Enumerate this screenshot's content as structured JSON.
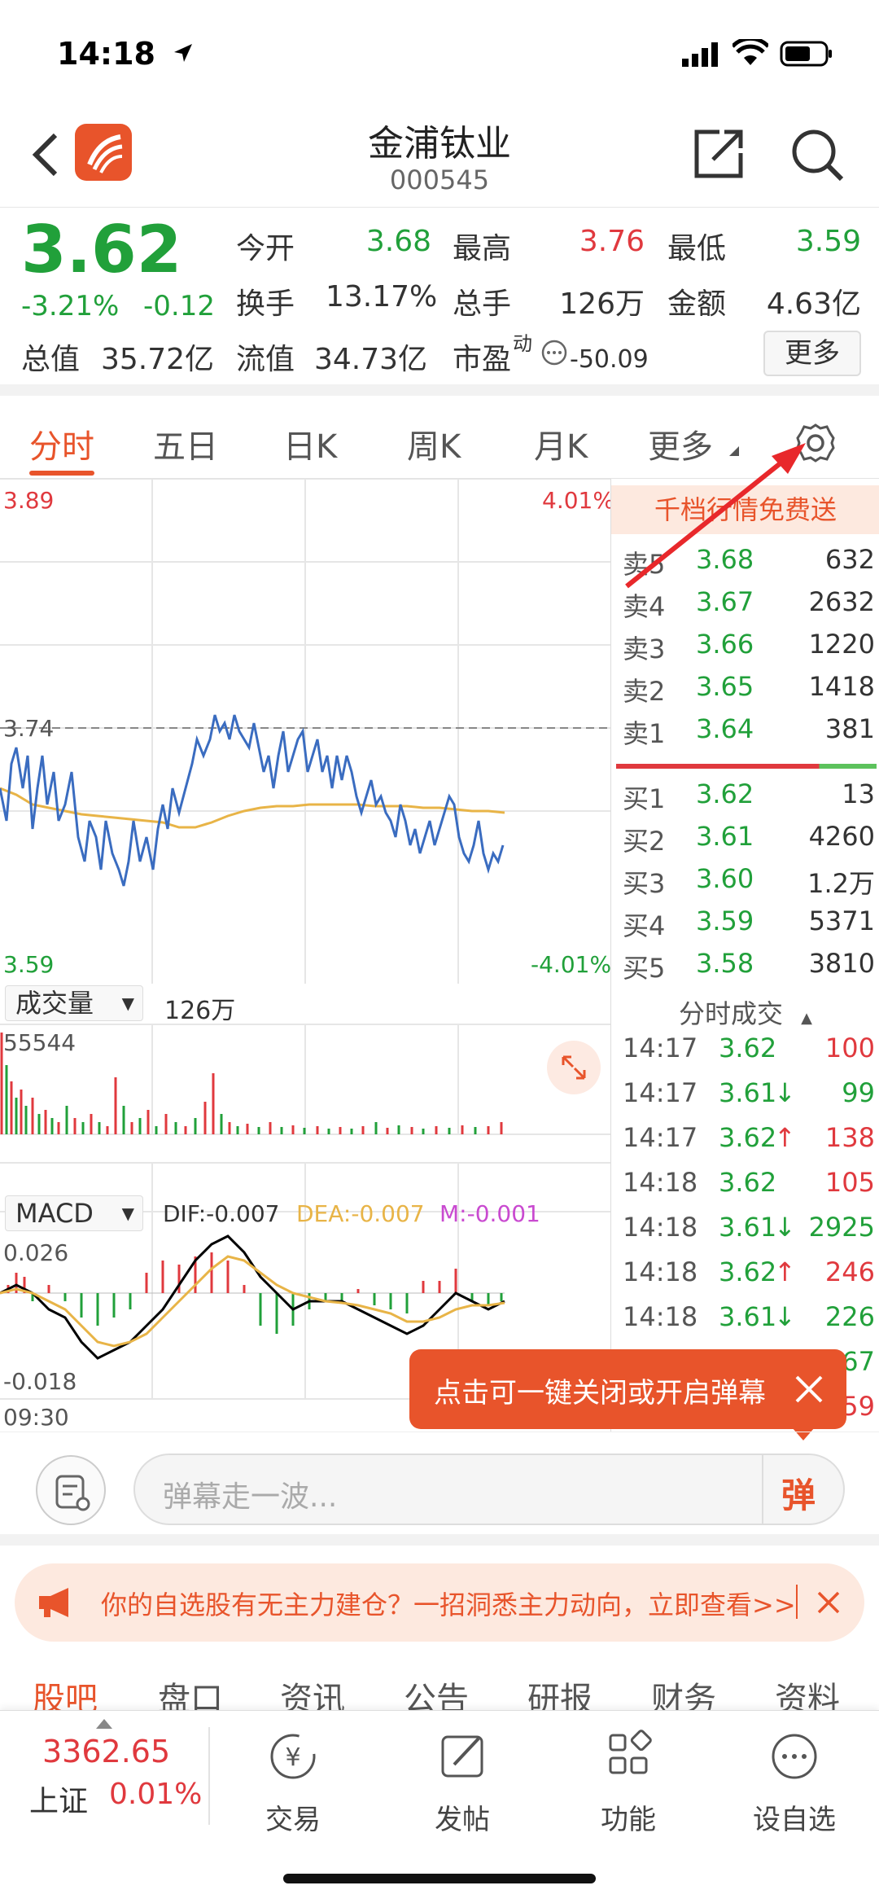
{
  "status_bar": {
    "time": "14:18"
  },
  "header": {
    "title": "金浦钛业",
    "code": "000545"
  },
  "quote": {
    "price": "3.62",
    "change_pct": "-3.21%",
    "change_amt": "-0.12",
    "fields": {
      "open_label": "今开",
      "open": "3.68",
      "high_label": "最高",
      "high": "3.76",
      "low_label": "最低",
      "low": "3.59",
      "turnover_label": "换手",
      "turnover": "13.17%",
      "volume_label": "总手",
      "volume": "126万",
      "amount_label": "金额",
      "amount": "4.63亿",
      "mktcap_label": "总值",
      "mktcap": "35.72亿",
      "float_label": "流值",
      "float_cap": "34.73亿",
      "pe_label": "市盈",
      "pe_sup": "动",
      "pe": "-50.09"
    },
    "more_button": "更多"
  },
  "chart_tabs": [
    "分时",
    "五日",
    "日K",
    "周K",
    "月K",
    "更多"
  ],
  "chart": {
    "price_high": "3.89",
    "price_low": "3.59",
    "pct_high": "4.01%",
    "pct_low": "-4.01%",
    "ref_line": "3.74",
    "volume_selector": "成交量",
    "volume_total": "126万",
    "volume_max": "55544",
    "macd_selector": "MACD",
    "dif": "DIF:-0.007",
    "dea": "DEA:-0.007",
    "m": "M:-0.001",
    "macd_high": "0.026",
    "macd_low": "-0.018",
    "time_start": "09:30"
  },
  "order_book": {
    "banner": "千档行情免费送",
    "asks": [
      {
        "label": "卖5",
        "price": "3.68",
        "vol": "632"
      },
      {
        "label": "卖4",
        "price": "3.67",
        "vol": "2632"
      },
      {
        "label": "卖3",
        "price": "3.66",
        "vol": "1220"
      },
      {
        "label": "卖2",
        "price": "3.65",
        "vol": "1418"
      },
      {
        "label": "卖1",
        "price": "3.64",
        "vol": "381"
      }
    ],
    "bids": [
      {
        "label": "买1",
        "price": "3.62",
        "vol": "13"
      },
      {
        "label": "买2",
        "price": "3.61",
        "vol": "4260"
      },
      {
        "label": "买3",
        "price": "3.60",
        "vol": "1.2万"
      },
      {
        "label": "买4",
        "price": "3.59",
        "vol": "5371"
      },
      {
        "label": "买5",
        "price": "3.58",
        "vol": "3810"
      }
    ],
    "trades_title": "分时成交",
    "trades": [
      {
        "time": "14:17",
        "price": "3.62",
        "arrow": "",
        "vol": "100",
        "color": "#e0393e"
      },
      {
        "time": "14:17",
        "price": "3.61",
        "arrow": "↓",
        "vol": "99",
        "color": "#21a03a"
      },
      {
        "time": "14:17",
        "price": "3.62",
        "arrow": "↑",
        "vol": "138",
        "color": "#e0393e"
      },
      {
        "time": "14:18",
        "price": "3.62",
        "arrow": "",
        "vol": "105",
        "color": "#e0393e"
      },
      {
        "time": "14:18",
        "price": "3.61",
        "arrow": "↓",
        "vol": "2925",
        "color": "#21a03a"
      },
      {
        "time": "14:18",
        "price": "3.62",
        "arrow": "↑",
        "vol": "246",
        "color": "#e0393e"
      },
      {
        "time": "14:18",
        "price": "3.61",
        "arrow": "↓",
        "vol": "226",
        "color": "#21a03a"
      }
    ],
    "trades_partial": [
      "67",
      "59"
    ]
  },
  "tooltip": "点击可一键关闭或开启弹幕",
  "danmu": {
    "placeholder": "弹幕走一波...",
    "button": "弹"
  },
  "promo": "你的自选股有无主力建仓？一招洞悉主力动向，立即查看>>",
  "sub_tabs": [
    "股吧",
    "盘口",
    "资讯",
    "公告",
    "研报",
    "财务",
    "资料"
  ],
  "bottom_bar": {
    "index_value": "3362.65",
    "index_name": "上证",
    "index_change": "0.01%",
    "items": [
      "交易",
      "发帖",
      "功能",
      "设自选"
    ]
  },
  "colors": {
    "accent": "#e8542b",
    "up": "#e0393e",
    "down": "#21a03a",
    "price_line": "#3a6cc0",
    "avg_line": "#e8b447"
  }
}
